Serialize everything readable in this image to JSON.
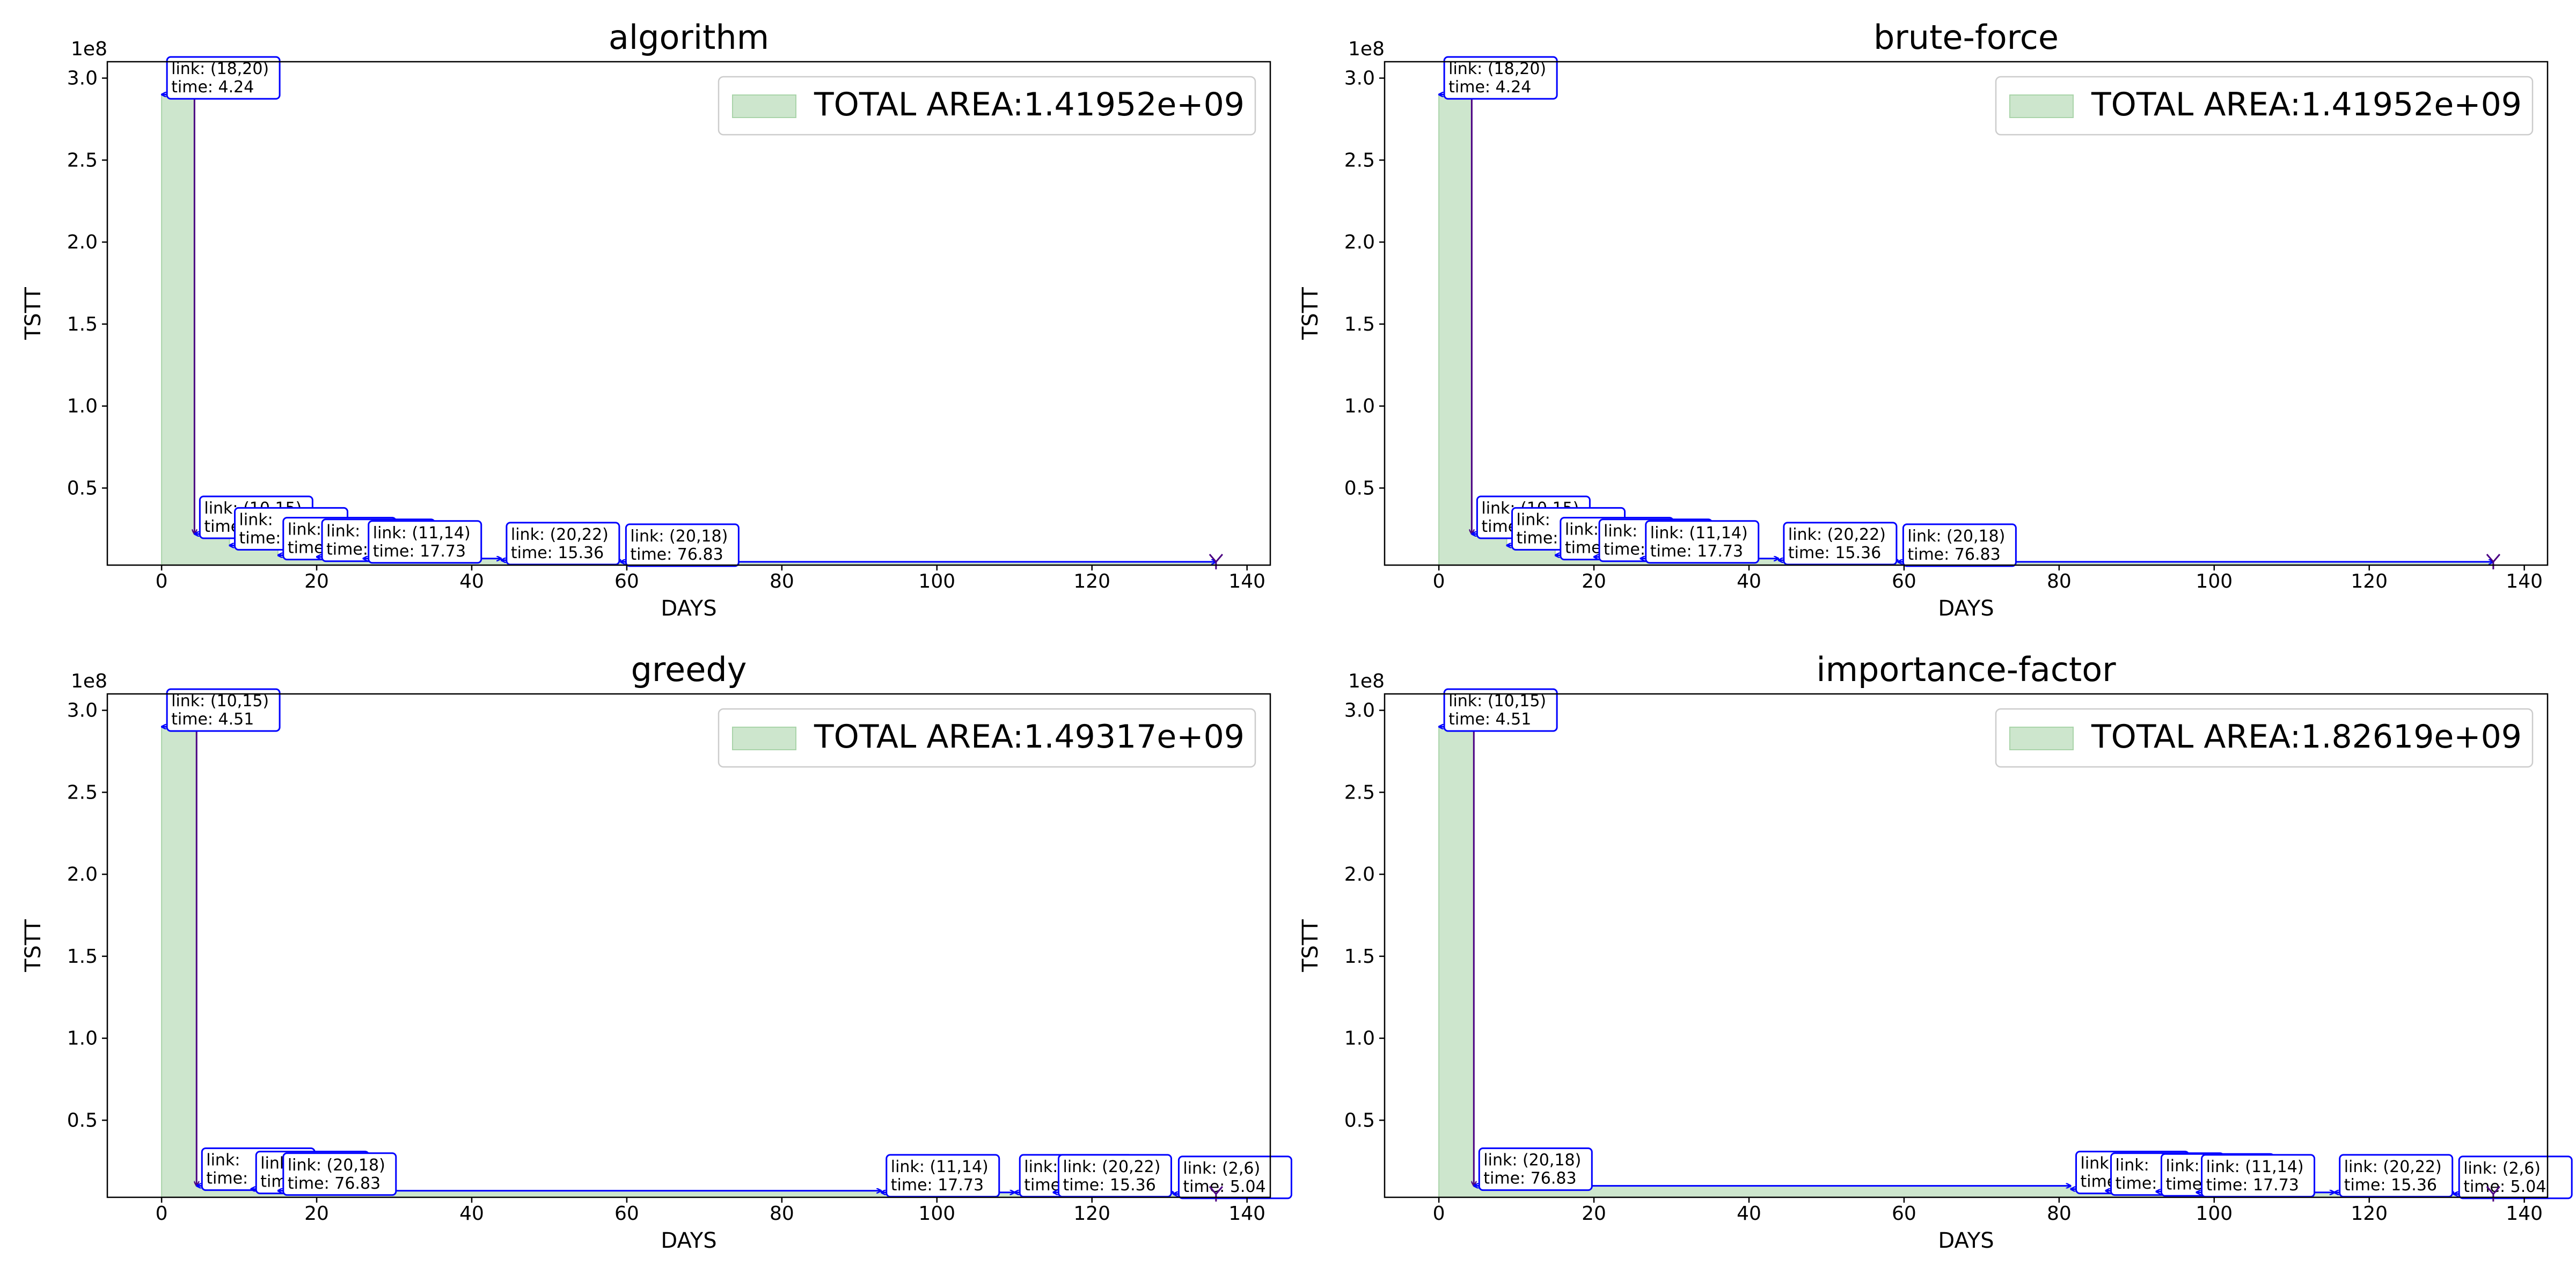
{
  "figure": {
    "x_label": "DAYS",
    "y_label": "TSTT",
    "y_exponent": "1e8",
    "x_ticks": [
      "0",
      "20",
      "40",
      "60",
      "80",
      "100",
      "120",
      "140"
    ],
    "y_ticks": [
      "0.5",
      "1.0",
      "1.5",
      "2.0",
      "2.5",
      "3.0"
    ]
  },
  "colors": {
    "area_fill": "#cde6cd",
    "area_edge": "#a9d4a9",
    "annotation": "#0000ff",
    "vertical_arrow": "#4b0082",
    "end_marker": "#4b0082"
  },
  "chart_data": [
    {
      "type": "area",
      "title": "algorithm",
      "legend": "TOTAL AREA:1.41952e+09",
      "legend_position": "upper right",
      "xlim": [
        -7,
        143
      ],
      "ylim": [
        3000000,
        310000000
      ],
      "x": [
        0,
        4.24,
        8.75,
        15.0,
        20.0,
        26.0,
        43.8,
        59.2,
        136.0
      ],
      "y": [
        290000000,
        22000000,
        15000000,
        9000000,
        8000000,
        7000000,
        6000000,
        5000000,
        5000000
      ],
      "repairs": [
        {
          "link": "(18,20)",
          "time": "4.24"
        },
        {
          "link": "(10,15)",
          "time": ""
        },
        {
          "link": "",
          "time": ""
        },
        {
          "link": "",
          "time": ""
        },
        {
          "link": "",
          "time": ""
        },
        {
          "link": "(11,14)",
          "time": "17.73"
        },
        {
          "link": "(20,22)",
          "time": "15.36"
        },
        {
          "link": "(20,18)",
          "time": "76.83"
        }
      ]
    },
    {
      "type": "area",
      "title": "brute-force",
      "legend": "TOTAL AREA:1.41952e+09",
      "legend_position": "upper right",
      "xlim": [
        -7,
        143
      ],
      "ylim": [
        3000000,
        310000000
      ],
      "x": [
        0,
        4.24,
        8.75,
        15.0,
        20.0,
        26.0,
        43.8,
        59.2,
        136.0
      ],
      "y": [
        290000000,
        22000000,
        15000000,
        9000000,
        8000000,
        7000000,
        6000000,
        5000000,
        5000000
      ],
      "repairs": [
        {
          "link": "(18,20)",
          "time": "4.24"
        },
        {
          "link": "(10,15)",
          "time": ""
        },
        {
          "link": "",
          "time": ""
        },
        {
          "link": "",
          "time": ""
        },
        {
          "link": "",
          "time": ""
        },
        {
          "link": "(11,14)",
          "time": "17.73"
        },
        {
          "link": "(20,22)",
          "time": "15.36"
        },
        {
          "link": "(20,18)",
          "time": "76.83"
        }
      ]
    },
    {
      "type": "area",
      "title": "greedy",
      "legend": "TOTAL AREA:1.49317e+09",
      "legend_position": "upper right",
      "xlim": [
        -7,
        143
      ],
      "ylim": [
        3000000,
        310000000
      ],
      "x": [
        0,
        4.51,
        11.5,
        15.0,
        92.8,
        110.0,
        115.0,
        130.5,
        136.0
      ],
      "y": [
        290000000,
        10000000,
        8000000,
        7000000,
        6000000,
        6000000,
        6000000,
        5000000,
        5000000
      ],
      "repairs": [
        {
          "link": "(10,15)",
          "time": "4.51"
        },
        {
          "link": "",
          "time": ""
        },
        {
          "link": "",
          "time": ""
        },
        {
          "link": "(20,18)",
          "time": "76.83"
        },
        {
          "link": "(11,14)",
          "time": "17.73"
        },
        {
          "link": "",
          "time": ""
        },
        {
          "link": "(20,22)",
          "time": "15.36"
        },
        {
          "link": "(2,6)",
          "time": "5.04"
        }
      ]
    },
    {
      "type": "area",
      "title": "importance-factor",
      "legend": "TOTAL AREA:1.82619e+09",
      "legend_position": "upper right",
      "xlim": [
        -7,
        143
      ],
      "ylim": [
        3000000,
        310000000
      ],
      "x": [
        0,
        4.51,
        81.5,
        86.0,
        92.5,
        97.7,
        115.5,
        130.9,
        136.0
      ],
      "y": [
        290000000,
        10000000,
        8000000,
        7000000,
        6500000,
        6000000,
        6000000,
        5000000,
        5000000
      ],
      "repairs": [
        {
          "link": "(10,15)",
          "time": "4.51"
        },
        {
          "link": "(20,18)",
          "time": "76.83"
        },
        {
          "link": "",
          "time": ""
        },
        {
          "link": "",
          "time": ""
        },
        {
          "link": "",
          "time": ""
        },
        {
          "link": "(11,14)",
          "time": "17.73"
        },
        {
          "link": "(20,22)",
          "time": "15.36"
        },
        {
          "link": "(2,6)",
          "time": "5.04"
        }
      ]
    }
  ]
}
